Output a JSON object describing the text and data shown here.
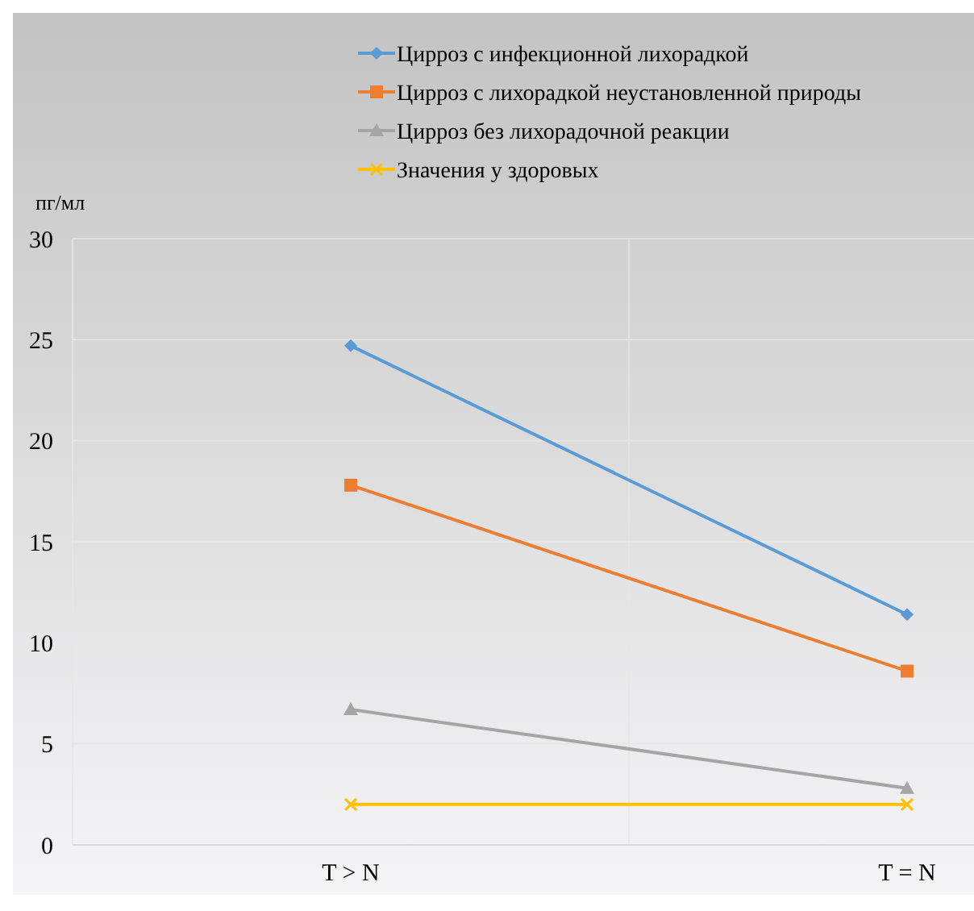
{
  "chart_data": {
    "type": "line",
    "ylabel": "пг/мл",
    "categories": [
      "T > N",
      "T = N"
    ],
    "series": [
      {
        "name": "Цирроз с инфекционной лихорадкой",
        "color": "#5b9bd5",
        "marker": "diamond",
        "values": [
          24.7,
          11.4
        ]
      },
      {
        "name": "Цирроз с лихорадкой неустановленной природы",
        "color": "#ed7d31",
        "marker": "square",
        "values": [
          17.8,
          8.6
        ]
      },
      {
        "name": "Цирроз без лихорадочной реакции",
        "color": "#a5a5a5",
        "marker": "triangle",
        "values": [
          6.7,
          2.8
        ]
      },
      {
        "name": "Значения у здоровых",
        "color": "#ffc000",
        "marker": "cross",
        "values": [
          2,
          2
        ]
      }
    ],
    "ylim": [
      0,
      30
    ],
    "yticks": [
      0,
      5,
      10,
      15,
      20,
      25,
      30
    ],
    "grid": true,
    "legend": "top"
  }
}
